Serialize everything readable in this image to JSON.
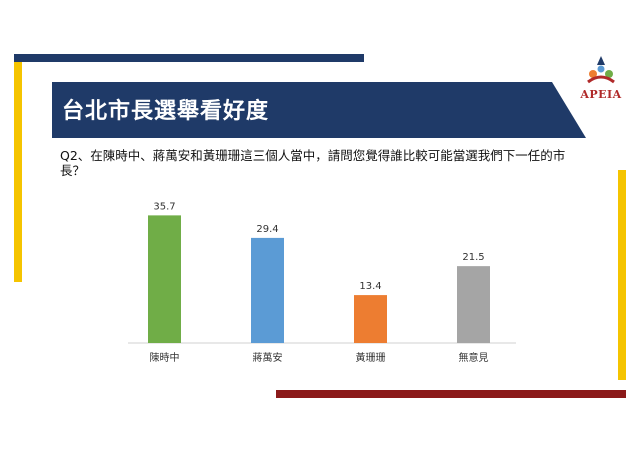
{
  "slide": {
    "title": "台北市長選舉看好度",
    "question": "Q2、在陳時中、蔣萬安和黃珊珊這三個人當中，請問您覺得誰比較可能當選我們下一任的市長？",
    "logo_text": "APEIA",
    "colors": {
      "navy": "#1f3a68",
      "yellow": "#f5c400",
      "dark_red": "#8b1a1a"
    }
  },
  "chart_data": {
    "type": "bar",
    "categories": [
      "陳時中",
      "蔣萬安",
      "黃珊珊",
      "無意見"
    ],
    "values": [
      35.7,
      29.4,
      13.4,
      21.5
    ],
    "value_labels": [
      "35.7",
      "29.4",
      "13.4",
      "21.5"
    ],
    "colors": [
      "#70ad47",
      "#5b9bd5",
      "#ed7d31",
      "#a5a5a5"
    ],
    "title": "",
    "xlabel": "",
    "ylabel": "",
    "ylim": [
      0,
      40
    ],
    "grid": false,
    "legend": "none"
  }
}
